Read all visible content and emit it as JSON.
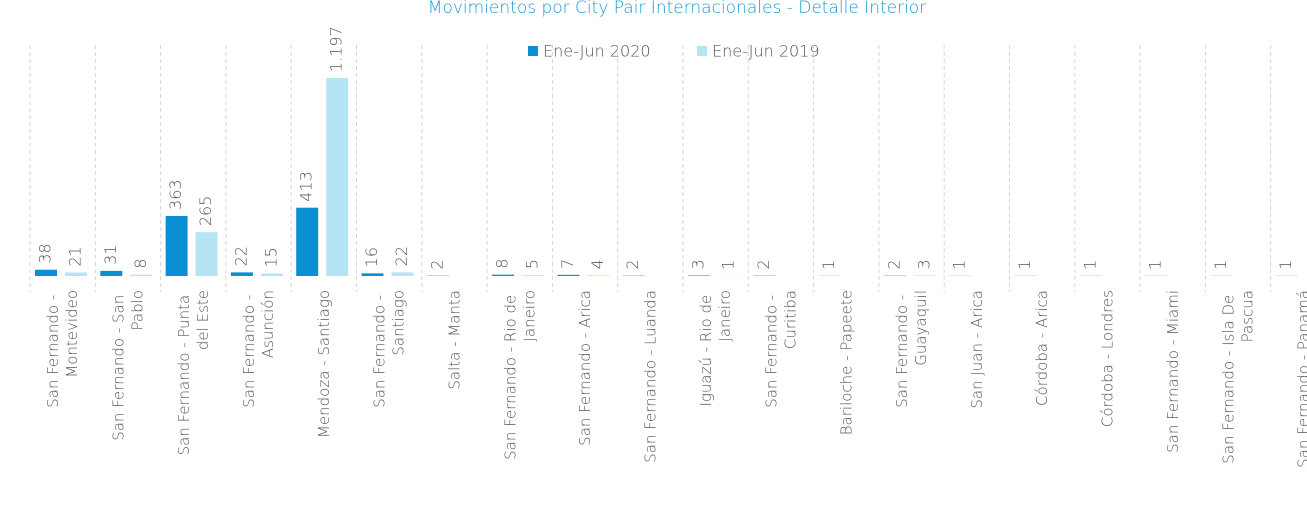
{
  "chart_data": {
    "type": "bar",
    "title": "Movimientos por City Pair Internacionales - Detalle Interior",
    "categories": [
      "San Fernando - Montevideo",
      "San Fernando - San Pablo",
      "San Fernando - Punta del Este",
      "San Fernando - Asunción",
      "Mendoza - Santiago",
      "San Fernando - Santiago",
      "Salta - Manta",
      "San Fernando - Rio de Janeiro",
      "San Fernando - Arica",
      "San Fernando - Luanda",
      "Iguazú - Rio de Janeiro",
      "San Fernando - Curitiba",
      "Bariloche - Papeete",
      "San Fernando - Guayaquil",
      "San Juan - Arica",
      "Córdoba - Arica",
      "Córdoba - Londres",
      "San Fernando - Miami",
      "San Fernando - Isla De Pascua",
      "San Fernando - Panamá"
    ],
    "series": [
      {
        "name": "Ene-Jun 2020",
        "color": "#0b8fd3",
        "values": [
          38,
          31,
          363,
          22,
          413,
          16,
          2,
          8,
          7,
          2,
          3,
          2,
          1,
          2,
          1,
          1,
          1,
          1,
          1,
          1
        ]
      },
      {
        "name": "Ene-Jun 2019",
        "color": "#b5e4f5",
        "values": [
          21,
          8,
          265,
          15,
          1197,
          22,
          null,
          5,
          4,
          null,
          1,
          null,
          null,
          3,
          null,
          null,
          null,
          null,
          null,
          null
        ],
        "value_labels": [
          "21",
          "8",
          "265",
          "15",
          "1.197",
          "22",
          null,
          "5",
          "4",
          null,
          "1",
          null,
          null,
          "3",
          null,
          null,
          null,
          null,
          null,
          null
        ]
      }
    ],
    "legend": "top"
  }
}
